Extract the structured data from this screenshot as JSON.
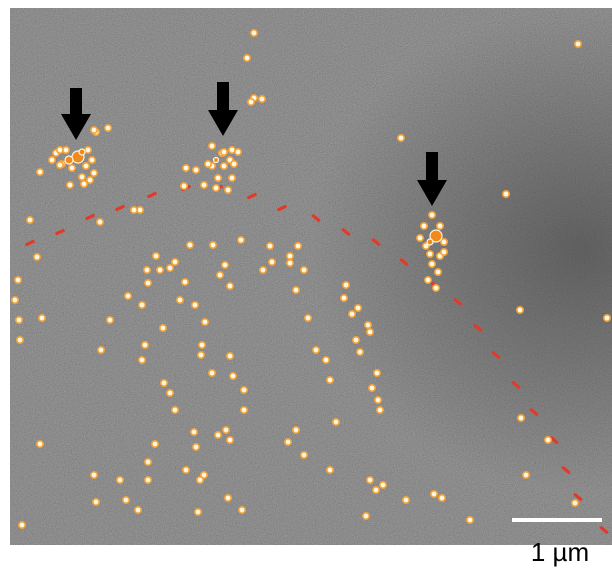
{
  "image": {
    "kind": "electron micrograph with immunogold particles",
    "colors": {
      "background": "#666666",
      "particle_fill": "#fdf6e0",
      "particle_ring": "#f2a23a",
      "cluster_core": "#f08a1c",
      "membrane_marker": "#e23a2a",
      "arrow": "#000000",
      "scale_bar": "#ffffff"
    }
  },
  "scale_bar": {
    "label": "1 µm"
  },
  "annotations": {
    "arrows": [
      "arrow-down-icon",
      "arrow-down-icon",
      "arrow-down-icon"
    ]
  }
}
